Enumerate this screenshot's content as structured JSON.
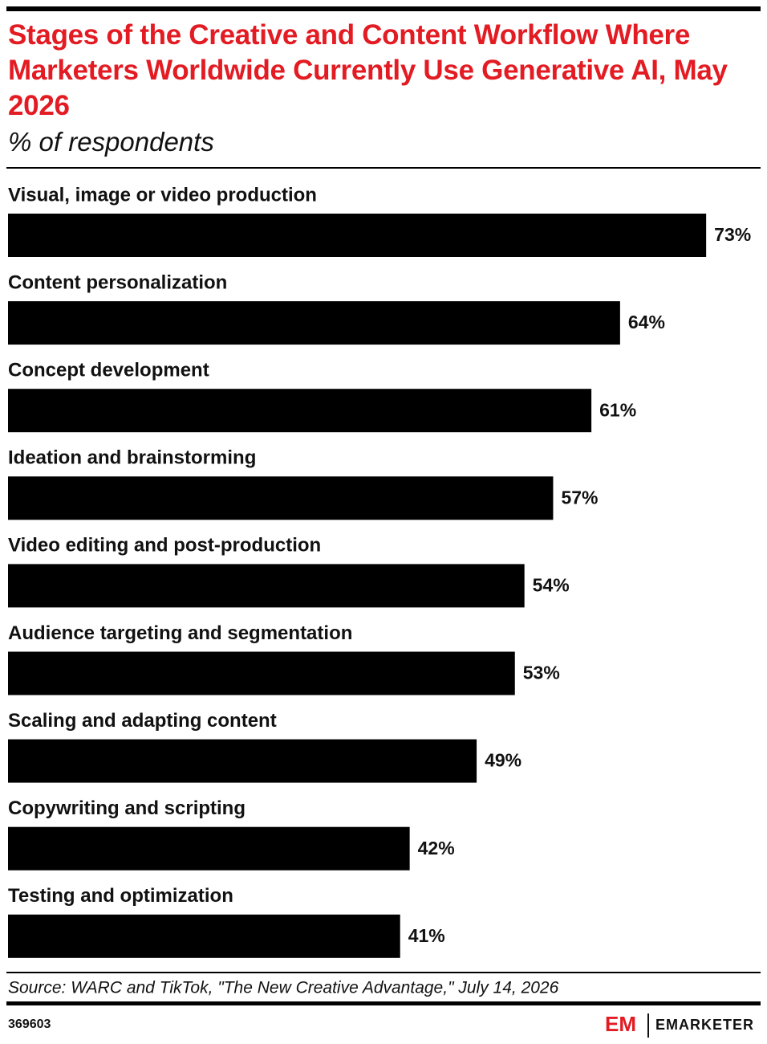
{
  "chart_data": {
    "type": "bar",
    "title": "Stages of the Creative and Content Workflow Where Marketers Worldwide Currently Use Generative AI, May 2026",
    "subtitle": "% of respondents",
    "categories": [
      "Visual, image or video production",
      "Content personalization",
      "Concept development",
      "Ideation and brainstorming",
      "Video editing and post-production",
      "Audience targeting and segmentation",
      "Scaling and adapting content",
      "Copywriting and scripting",
      "Testing and optimization"
    ],
    "values": [
      73,
      64,
      61,
      57,
      54,
      53,
      49,
      42,
      41
    ],
    "value_labels": [
      "73%",
      "64%",
      "61%",
      "57%",
      "54%",
      "53%",
      "49%",
      "42%",
      "41%"
    ],
    "color": "#000000",
    "source": "Source: WARC and TikTok, \"The New Creative Advantage,\" July 14, 2026",
    "chart_id": "369603",
    "brand": "EMARKETER"
  }
}
